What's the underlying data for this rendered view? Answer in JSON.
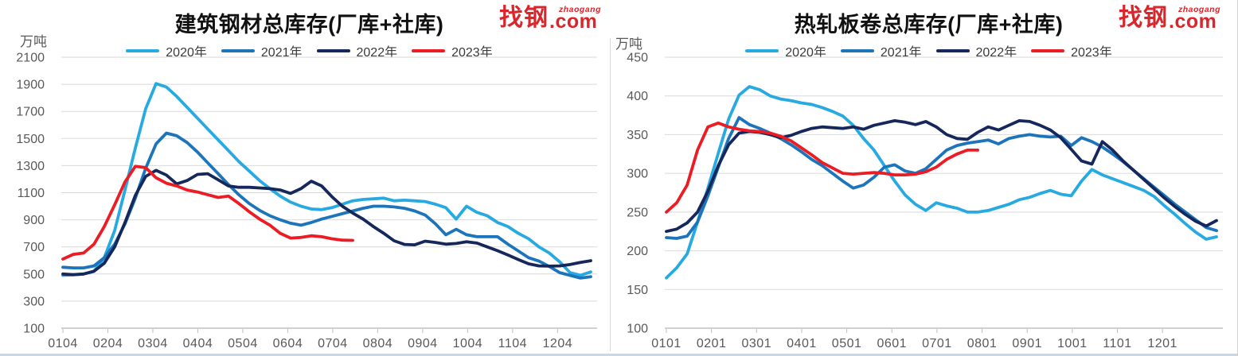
{
  "logo": {
    "cn": "找钢",
    "pinyin": "zhaogang",
    "com": ".com",
    "color": "#d9252c"
  },
  "colors": {
    "accent_red": "#ec1c24",
    "grid": "#d9d9d9",
    "axis": "#b3b3b3",
    "tick": "#bfbfbf",
    "axis_text": "#595959",
    "title_text": "#111111"
  },
  "chart_data": [
    {
      "type": "line",
      "title": "建筑钢材总库存(厂库+社库)",
      "unit": "万吨",
      "grid": true,
      "legend_position": "top",
      "x_axis": {
        "labels": [
          "0104",
          "0204",
          "0304",
          "0404",
          "0504",
          "0604",
          "0704",
          "0804",
          "0904",
          "1004",
          "1104",
          "1204"
        ],
        "note": "weekly (MMDD)"
      },
      "y_axis": {
        "min": 100,
        "max": 2100,
        "step": 200,
        "ticks": [
          2100,
          1900,
          1700,
          1500,
          1300,
          1100,
          900,
          700,
          500,
          300,
          100
        ]
      },
      "series": [
        {
          "name": "2020年",
          "color": "#27aae1",
          "values": [
            490,
            495,
            500,
            520,
            620,
            820,
            1120,
            1430,
            1720,
            1905,
            1880,
            1810,
            1730,
            1650,
            1570,
            1490,
            1410,
            1330,
            1260,
            1190,
            1130,
            1075,
            1030,
            1000,
            980,
            975,
            990,
            1015,
            1040,
            1050,
            1055,
            1060,
            1040,
            1045,
            1040,
            1035,
            1015,
            990,
            905,
            1000,
            955,
            930,
            880,
            850,
            800,
            760,
            700,
            655,
            590,
            510,
            490,
            515
          ]
        },
        {
          "name": "2021年",
          "color": "#1c75bb",
          "values": [
            550,
            545,
            545,
            560,
            620,
            720,
            870,
            1060,
            1280,
            1460,
            1540,
            1520,
            1470,
            1400,
            1320,
            1240,
            1160,
            1085,
            1020,
            970,
            930,
            900,
            875,
            860,
            880,
            905,
            925,
            945,
            965,
            985,
            1000,
            1000,
            995,
            985,
            965,
            935,
            870,
            790,
            830,
            790,
            775,
            775,
            775,
            720,
            670,
            620,
            595,
            555,
            510,
            490,
            470,
            480
          ]
        },
        {
          "name": "2022年",
          "color": "#15275b",
          "values": [
            500,
            495,
            500,
            520,
            580,
            700,
            880,
            1080,
            1220,
            1265,
            1230,
            1165,
            1190,
            1235,
            1240,
            1195,
            1150,
            1140,
            1140,
            1135,
            1130,
            1120,
            1095,
            1130,
            1185,
            1150,
            1070,
            1000,
            950,
            905,
            850,
            800,
            745,
            718,
            715,
            742,
            733,
            720,
            725,
            738,
            728,
            700,
            672,
            640,
            607,
            575,
            560,
            558,
            560,
            570,
            585,
            598
          ]
        },
        {
          "name": "2023年",
          "color": "#ec1c24",
          "values": [
            610,
            645,
            655,
            720,
            850,
            1010,
            1180,
            1295,
            1285,
            1210,
            1170,
            1150,
            1120,
            1105,
            1085,
            1065,
            1075,
            1020,
            960,
            905,
            860,
            800,
            765,
            770,
            782,
            775,
            760,
            750,
            748
          ]
        }
      ]
    },
    {
      "type": "line",
      "title": "热轧板卷总库存(厂库+社库)",
      "unit": "万吨",
      "grid": true,
      "legend_position": "top",
      "x_axis": {
        "labels": [
          "0101",
          "0201",
          "0301",
          "0401",
          "0501",
          "0601",
          "0701",
          "0801",
          "0901",
          "1001",
          "1101",
          "1201"
        ],
        "note": "weekly (MMDD)"
      },
      "y_axis": {
        "min": 100,
        "max": 450,
        "step": 50,
        "ticks": [
          450,
          400,
          350,
          300,
          250,
          200,
          150,
          100
        ]
      },
      "series": [
        {
          "name": "2020年",
          "color": "#27aae1",
          "values": [
            165,
            178,
            196,
            237,
            281,
            326,
            370,
            401,
            412,
            408,
            400,
            396,
            394,
            391,
            389,
            385,
            380,
            374,
            362,
            345,
            330,
            310,
            290,
            272,
            260,
            252,
            262,
            258,
            255,
            250,
            250,
            252,
            256,
            260,
            266,
            269,
            274,
            278,
            273,
            271,
            290,
            305,
            298,
            293,
            288,
            283,
            278,
            270,
            258,
            247,
            235,
            224,
            215,
            218
          ]
        },
        {
          "name": "2021年",
          "color": "#1c75bb",
          "values": [
            217,
            216,
            219,
            237,
            271,
            308,
            345,
            372,
            363,
            358,
            352,
            345,
            337,
            328,
            318,
            310,
            300,
            290,
            281,
            285,
            295,
            308,
            311,
            303,
            300,
            306,
            318,
            330,
            336,
            339,
            341,
            343,
            338,
            345,
            348,
            350,
            348,
            347,
            348,
            336,
            346,
            341,
            334,
            325,
            315,
            304,
            293,
            282,
            271,
            260,
            250,
            240,
            230,
            226
          ]
        },
        {
          "name": "2022年",
          "color": "#15275b",
          "values": [
            225,
            228,
            236,
            250,
            277,
            310,
            337,
            352,
            354,
            353,
            350,
            346,
            349,
            354,
            358,
            360,
            359,
            358,
            360,
            357,
            362,
            365,
            368,
            366,
            363,
            367,
            360,
            350,
            345,
            344,
            353,
            360,
            356,
            362,
            368,
            367,
            362,
            356,
            346,
            331,
            316,
            312,
            341,
            330,
            316,
            304,
            292,
            280,
            268,
            257,
            247,
            238,
            232,
            239
          ]
        },
        {
          "name": "2023年",
          "color": "#ec1c24",
          "values": [
            250,
            262,
            285,
            330,
            360,
            365,
            360,
            357,
            355,
            354,
            352,
            348,
            342,
            333,
            324,
            314,
            307,
            300,
            299,
            300,
            301,
            300,
            298,
            298,
            299,
            302,
            308,
            318,
            325,
            330,
            330
          ]
        }
      ]
    }
  ]
}
